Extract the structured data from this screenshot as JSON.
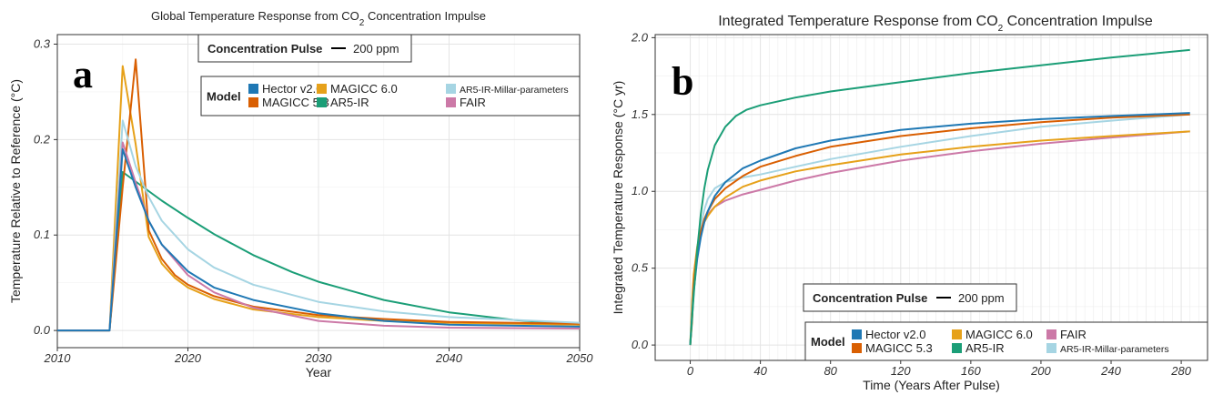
{
  "chart_data": [
    {
      "type": "line",
      "panel": "a",
      "title_parts": [
        "Global Temperature Response from CO",
        "2",
        " Concentration Impulse"
      ],
      "xlabel": "Year",
      "ylabel": "Temperature Relative to Reference (°C)",
      "xlim": [
        2010,
        2050
      ],
      "ylim": [
        -0.018,
        0.31
      ],
      "xticks": [
        2010,
        2020,
        2030,
        2040,
        2050
      ],
      "xtick_labels": [
        "2010",
        "2020",
        "2030",
        "2040",
        "2050"
      ],
      "yticks": [
        0.0,
        0.1,
        0.2,
        0.3
      ],
      "ytick_labels": [
        "0.0",
        "0.1",
        "0.2",
        "0.3"
      ],
      "grid": true,
      "pulse_legend": {
        "title": "Concentration Pulse",
        "value": "200 ppm"
      },
      "legend": {
        "title": "Model",
        "position": "top-right",
        "entries": [
          {
            "label": "Hector v2.0",
            "color": "#1f78b4"
          },
          {
            "label": "MAGICC 5.3",
            "color": "#d95f02"
          },
          {
            "label": "MAGICC 6.0",
            "color": "#e6a11a"
          },
          {
            "label": "AR5-IR",
            "color": "#1b9e77"
          },
          {
            "label": "AR5-IR-Millar-parameters",
            "color": "#a6d5e3"
          },
          {
            "label": "FAIR",
            "color": "#cc79a7"
          }
        ]
      },
      "series": [
        {
          "name": "AR5-IR",
          "color": "#1b9e77",
          "x": [
            2010,
            2014,
            2015,
            2016,
            2017,
            2018,
            2020,
            2022,
            2025,
            2028,
            2030,
            2035,
            2040,
            2045,
            2050
          ],
          "y": [
            0,
            0,
            0.166,
            0.156,
            0.146,
            0.136,
            0.118,
            0.101,
            0.079,
            0.061,
            0.051,
            0.032,
            0.019,
            0.011,
            0.006
          ]
        },
        {
          "name": "MAGICC 6.0",
          "color": "#e6a11a",
          "x": [
            2010,
            2014,
            2015,
            2016,
            2017,
            2018,
            2019,
            2020,
            2022,
            2025,
            2030,
            2035,
            2040,
            2050
          ],
          "y": [
            0,
            0,
            0.277,
            0.195,
            0.098,
            0.07,
            0.055,
            0.045,
            0.033,
            0.022,
            0.014,
            0.01,
            0.008,
            0.006
          ]
        },
        {
          "name": "MAGICC 5.3",
          "color": "#d95f02",
          "x": [
            2010,
            2014,
            2015,
            2016,
            2017,
            2018,
            2019,
            2020,
            2022,
            2025,
            2030,
            2035,
            2040,
            2050
          ],
          "y": [
            0,
            0,
            0.15,
            0.284,
            0.105,
            0.075,
            0.058,
            0.048,
            0.036,
            0.025,
            0.016,
            0.012,
            0.009,
            0.007
          ]
        },
        {
          "name": "AR5-IR-Millar-parameters",
          "color": "#a6d5e3",
          "x": [
            2010,
            2014,
            2015,
            2016,
            2017,
            2018,
            2020,
            2022,
            2025,
            2030,
            2035,
            2040,
            2050
          ],
          "y": [
            0,
            0,
            0.22,
            0.172,
            0.14,
            0.115,
            0.085,
            0.066,
            0.048,
            0.03,
            0.02,
            0.014,
            0.008
          ]
        },
        {
          "name": "FAIR",
          "color": "#cc79a7",
          "x": [
            2010,
            2014,
            2015,
            2016,
            2017,
            2018,
            2020,
            2022,
            2025,
            2030,
            2035,
            2040,
            2050
          ],
          "y": [
            0,
            0,
            0.197,
            0.155,
            0.115,
            0.09,
            0.058,
            0.04,
            0.024,
            0.01,
            0.005,
            0.003,
            0.002
          ]
        },
        {
          "name": "Hector v2.0",
          "color": "#1f78b4",
          "x": [
            2010,
            2014,
            2015,
            2016,
            2017,
            2018,
            2020,
            2022,
            2025,
            2030,
            2035,
            2040,
            2050
          ],
          "y": [
            0,
            0,
            0.19,
            0.15,
            0.115,
            0.09,
            0.062,
            0.045,
            0.032,
            0.018,
            0.01,
            0.006,
            0.004
          ]
        }
      ]
    },
    {
      "type": "line",
      "panel": "b",
      "title_parts": [
        "Integrated Temperature Response from CO",
        "2",
        " Concentration Impulse"
      ],
      "xlabel": "Time (Years After Pulse)",
      "ylabel": "Integrated Temperature Response (°C yr)",
      "xlim": [
        -20,
        295
      ],
      "ylim": [
        -0.1,
        2.02
      ],
      "xticks": [
        0,
        40,
        80,
        120,
        160,
        200,
        240,
        280
      ],
      "xtick_labels": [
        "0",
        "40",
        "80",
        "120",
        "160",
        "200",
        "240",
        "280"
      ],
      "yticks": [
        0.0,
        0.5,
        1.0,
        1.5,
        2.0
      ],
      "ytick_labels": [
        "0.0",
        "0.5",
        "1.0",
        "1.5",
        "2.0"
      ],
      "grid": true,
      "pulse_legend": {
        "title": "Concentration Pulse",
        "value": "200 ppm"
      },
      "legend": {
        "title": "Model",
        "position": "bottom-right",
        "entries": [
          {
            "label": "Hector v2.0",
            "color": "#1f78b4"
          },
          {
            "label": "MAGICC 5.3",
            "color": "#d95f02"
          },
          {
            "label": "MAGICC 6.0",
            "color": "#e6a11a"
          },
          {
            "label": "AR5-IR",
            "color": "#1b9e77"
          },
          {
            "label": "FAIR",
            "color": "#cc79a7"
          },
          {
            "label": "AR5-IR-Millar-parameters",
            "color": "#a6d5e3"
          }
        ]
      },
      "series": [
        {
          "name": "FAIR",
          "color": "#cc79a7",
          "x": [
            0,
            1,
            2,
            4,
            6,
            8,
            10,
            14,
            20,
            30,
            40,
            60,
            80,
            120,
            160,
            200,
            240,
            285
          ],
          "y": [
            0,
            0.2,
            0.36,
            0.58,
            0.72,
            0.8,
            0.85,
            0.9,
            0.94,
            0.98,
            1.01,
            1.07,
            1.12,
            1.2,
            1.26,
            1.31,
            1.35,
            1.39
          ]
        },
        {
          "name": "MAGICC 6.0",
          "color": "#e6a11a",
          "x": [
            0,
            1,
            2,
            4,
            6,
            8,
            10,
            14,
            20,
            30,
            40,
            60,
            80,
            120,
            160,
            200,
            240,
            285
          ],
          "y": [
            0,
            0.28,
            0.46,
            0.64,
            0.74,
            0.8,
            0.84,
            0.9,
            0.96,
            1.03,
            1.07,
            1.13,
            1.17,
            1.24,
            1.29,
            1.33,
            1.36,
            1.39
          ]
        },
        {
          "name": "AR5-IR-Millar-parameters",
          "color": "#a6d5e3",
          "x": [
            0,
            1,
            2,
            4,
            6,
            8,
            10,
            14,
            20,
            30,
            40,
            60,
            80,
            120,
            160,
            200,
            240,
            285
          ],
          "y": [
            0,
            0.2,
            0.38,
            0.62,
            0.78,
            0.88,
            0.95,
            1.02,
            1.06,
            1.09,
            1.11,
            1.16,
            1.21,
            1.29,
            1.36,
            1.42,
            1.46,
            1.5
          ]
        },
        {
          "name": "MAGICC 5.3",
          "color": "#d95f02",
          "x": [
            0,
            1,
            2,
            4,
            6,
            8,
            10,
            14,
            20,
            30,
            40,
            60,
            80,
            120,
            160,
            200,
            240,
            285
          ],
          "y": [
            0,
            0.15,
            0.4,
            0.62,
            0.74,
            0.82,
            0.87,
            0.95,
            1.02,
            1.1,
            1.16,
            1.23,
            1.29,
            1.36,
            1.41,
            1.45,
            1.48,
            1.5
          ]
        },
        {
          "name": "Hector v2.0",
          "color": "#1f78b4",
          "x": [
            0,
            1,
            2,
            4,
            6,
            8,
            10,
            14,
            20,
            30,
            40,
            60,
            80,
            120,
            160,
            200,
            240,
            285
          ],
          "y": [
            0,
            0.19,
            0.35,
            0.56,
            0.7,
            0.8,
            0.87,
            0.97,
            1.06,
            1.15,
            1.2,
            1.28,
            1.33,
            1.4,
            1.44,
            1.47,
            1.49,
            1.51
          ]
        },
        {
          "name": "AR5-IR",
          "color": "#1b9e77",
          "x": [
            0,
            1,
            2,
            4,
            6,
            8,
            10,
            14,
            20,
            26,
            32,
            40,
            60,
            80,
            120,
            160,
            200,
            240,
            285
          ],
          "y": [
            0,
            0.17,
            0.33,
            0.62,
            0.85,
            1.02,
            1.14,
            1.3,
            1.42,
            1.49,
            1.53,
            1.56,
            1.61,
            1.65,
            1.71,
            1.77,
            1.82,
            1.87,
            1.92
          ]
        }
      ]
    }
  ]
}
